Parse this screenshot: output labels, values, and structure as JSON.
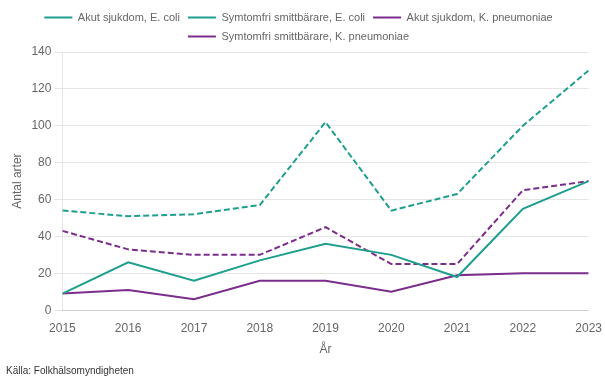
{
  "chart_data": {
    "type": "line",
    "x": [
      2015,
      2016,
      2017,
      2018,
      2019,
      2020,
      2021,
      2022,
      2023
    ],
    "xlabel": "År",
    "ylabel": "Antal arter",
    "annotations": [
      "Källa: Folkhälsomyndigheten"
    ],
    "series": [
      {
        "name": "Akut sjukdom, E. coli",
        "color": "#1d9e8e",
        "line_style": "solid",
        "values": [
          9,
          26,
          16,
          27,
          36,
          30,
          18,
          55,
          70
        ]
      },
      {
        "name": "Symtomfri smittbärare, E. coli",
        "color": "#1d9e8e",
        "line_style": "dashed",
        "values": [
          54,
          51,
          52,
          57,
          102,
          54,
          63,
          100,
          130
        ]
      },
      {
        "name": "Akut sjukdom, K. pneumoniae",
        "color": "#7b2d8b",
        "line_style": "solid",
        "values": [
          9,
          11,
          6,
          16,
          16,
          10,
          19,
          20,
          20
        ]
      },
      {
        "name": "Symtomfri smittbärare, K. pneumoniae",
        "color": "#7b2d8b",
        "line_style": "dashed",
        "values": [
          43,
          33,
          30,
          30,
          45,
          25,
          25,
          65,
          70
        ]
      }
    ],
    "xlim": [
      2015,
      2023
    ],
    "xticks": [
      2015,
      2016,
      2017,
      2018,
      2019,
      2020,
      2021,
      2022,
      2023
    ],
    "ylim": [
      0,
      140
    ],
    "yticks": [
      0,
      20,
      40,
      60,
      80,
      100,
      120,
      140
    ],
    "grid": "y",
    "legend": "top"
  }
}
